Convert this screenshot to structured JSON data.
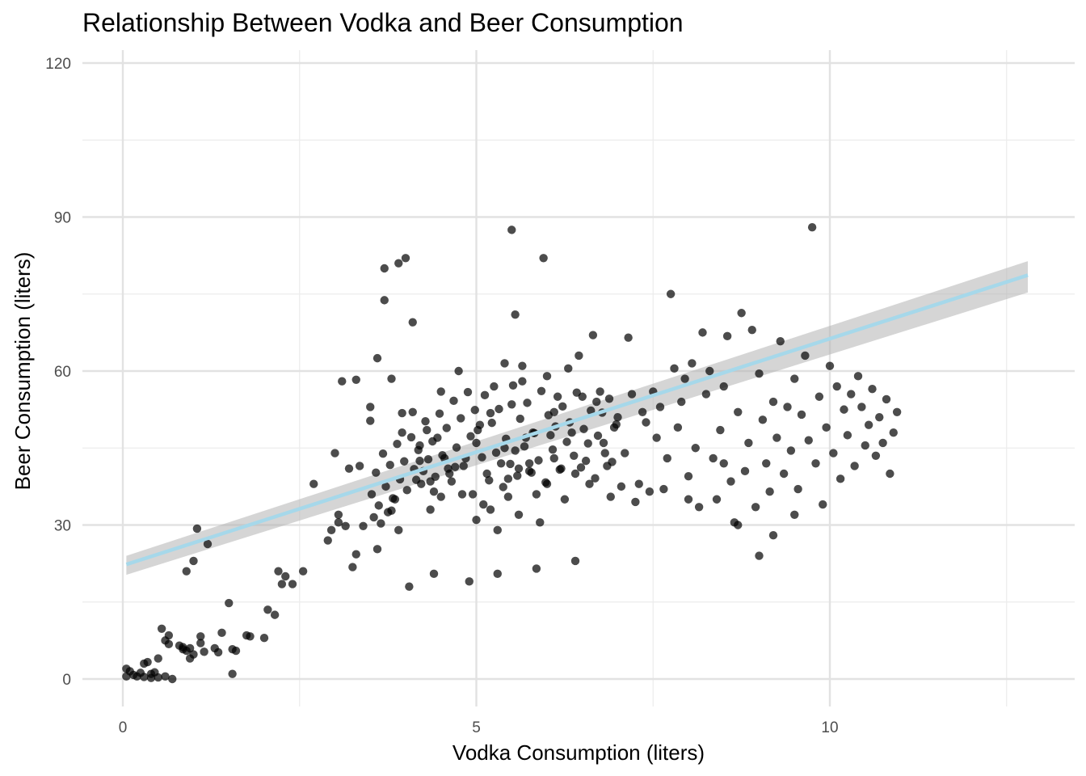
{
  "chart_data": {
    "type": "scatter",
    "title": "Relationship Between Vodka and Beer Consumption",
    "xlabel": "Vodka Consumption (liters)",
    "ylabel": "Beer Consumption (liters)",
    "xlim": [
      -1.1,
      13.2
    ],
    "ylim": [
      -5,
      122
    ],
    "x_ticks": [
      0,
      5,
      10
    ],
    "x_tick_labels": [
      "0",
      "5",
      "10"
    ],
    "y_ticks": [
      0,
      30,
      60,
      90,
      120
    ],
    "y_tick_labels": [
      "0",
      "30",
      "60",
      "90",
      "120"
    ],
    "x_minor_gridlines": [
      2.5,
      7.5,
      12.5
    ],
    "y_minor_gridlines": [
      15,
      45,
      75,
      105
    ],
    "grid": true,
    "legend": "none",
    "point_color": "#000000",
    "point_opacity": 0.7,
    "trend": {
      "type": "linear",
      "x_range": [
        0.05,
        12.8
      ],
      "intercept": 22.1,
      "slope": 4.42,
      "ci_low_start": 20.3,
      "ci_high_start": 24.0,
      "ci_low_end": 75.3,
      "ci_high_end": 81.4,
      "line_color": "#a6d8ea",
      "band_color": "#b3b3b3"
    },
    "points": [
      [
        0.05,
        2.0
      ],
      [
        0.05,
        0.5
      ],
      [
        0.1,
        1.5
      ],
      [
        0.15,
        0.8
      ],
      [
        0.2,
        0.5
      ],
      [
        0.25,
        1.2
      ],
      [
        0.3,
        0.4
      ],
      [
        0.3,
        3.0
      ],
      [
        0.35,
        3.3
      ],
      [
        0.4,
        0.2
      ],
      [
        0.4,
        1.0
      ],
      [
        0.45,
        1.3
      ],
      [
        0.5,
        4.0
      ],
      [
        0.5,
        0.3
      ],
      [
        0.55,
        9.8
      ],
      [
        0.6,
        7.5
      ],
      [
        0.6,
        0.5
      ],
      [
        0.65,
        8.5
      ],
      [
        0.65,
        6.8
      ],
      [
        0.7,
        0.0
      ],
      [
        0.8,
        6.5
      ],
      [
        0.85,
        5.8
      ],
      [
        0.85,
        6.2
      ],
      [
        0.9,
        21.0
      ],
      [
        0.9,
        5.5
      ],
      [
        0.95,
        4.0
      ],
      [
        0.95,
        6.0
      ],
      [
        1.0,
        23.0
      ],
      [
        1.0,
        4.8
      ],
      [
        1.05,
        29.3
      ],
      [
        1.1,
        7.0
      ],
      [
        1.1,
        8.3
      ],
      [
        1.15,
        5.3
      ],
      [
        1.2,
        26.3
      ],
      [
        1.3,
        6.0
      ],
      [
        1.35,
        5.2
      ],
      [
        1.4,
        9.0
      ],
      [
        1.5,
        14.8
      ],
      [
        1.55,
        1.0
      ],
      [
        1.55,
        5.8
      ],
      [
        1.6,
        5.5
      ],
      [
        1.75,
        8.5
      ],
      [
        1.8,
        8.3
      ],
      [
        2.0,
        8.0
      ],
      [
        2.05,
        13.5
      ],
      [
        2.15,
        12.5
      ],
      [
        2.2,
        21.0
      ],
      [
        2.25,
        18.5
      ],
      [
        2.3,
        20.0
      ],
      [
        2.4,
        18.5
      ],
      [
        2.55,
        21.0
      ],
      [
        2.7,
        38.0
      ],
      [
        2.9,
        27.0
      ],
      [
        2.95,
        29.0
      ],
      [
        3.0,
        44.0
      ],
      [
        3.05,
        32.0
      ],
      [
        3.05,
        30.5
      ],
      [
        3.1,
        58.0
      ],
      [
        3.15,
        29.8
      ],
      [
        3.2,
        41.0
      ],
      [
        3.25,
        21.8
      ],
      [
        3.3,
        24.3
      ],
      [
        3.3,
        58.3
      ],
      [
        3.35,
        41.5
      ],
      [
        3.4,
        29.8
      ],
      [
        3.5,
        50.3
      ],
      [
        3.5,
        53.0
      ],
      [
        3.55,
        31.5
      ],
      [
        3.6,
        25.3
      ],
      [
        3.6,
        62.5
      ],
      [
        3.65,
        30.3
      ],
      [
        3.7,
        73.8
      ],
      [
        3.7,
        80.0
      ],
      [
        3.75,
        32.5
      ],
      [
        3.8,
        32.8
      ],
      [
        3.8,
        58.5
      ],
      [
        3.85,
        35.0
      ],
      [
        3.9,
        81.0
      ],
      [
        3.9,
        29.0
      ],
      [
        3.95,
        48.0
      ],
      [
        3.95,
        51.8
      ],
      [
        4.0,
        82.0
      ],
      [
        4.05,
        18.0
      ],
      [
        4.1,
        52.0
      ],
      [
        4.1,
        69.5
      ],
      [
        4.15,
        38.8
      ],
      [
        4.2,
        42.5
      ],
      [
        4.2,
        45.5
      ],
      [
        4.25,
        40.5
      ],
      [
        4.3,
        48.5
      ],
      [
        4.35,
        33.0
      ],
      [
        4.35,
        38.5
      ],
      [
        4.4,
        36.5
      ],
      [
        4.4,
        20.5
      ],
      [
        4.45,
        47.0
      ],
      [
        4.5,
        35.5
      ],
      [
        4.5,
        56.0
      ],
      [
        4.55,
        43.0
      ],
      [
        4.6,
        41.0
      ],
      [
        4.65,
        38.5
      ],
      [
        4.7,
        41.3
      ],
      [
        4.75,
        60.0
      ],
      [
        4.8,
        36.0
      ],
      [
        4.85,
        43.0
      ],
      [
        4.9,
        19.0
      ],
      [
        4.95,
        36.0
      ],
      [
        5.0,
        31.0
      ],
      [
        5.0,
        46.0
      ],
      [
        5.05,
        49.5
      ],
      [
        5.1,
        34.0
      ],
      [
        5.15,
        40.0
      ],
      [
        5.2,
        33.0
      ],
      [
        5.2,
        51.8
      ],
      [
        5.25,
        57.0
      ],
      [
        5.3,
        29.0
      ],
      [
        5.3,
        20.5
      ],
      [
        5.35,
        42.0
      ],
      [
        5.4,
        61.5
      ],
      [
        5.4,
        45.0
      ],
      [
        5.45,
        39.0
      ],
      [
        5.45,
        35.5
      ],
      [
        5.5,
        53.5
      ],
      [
        5.5,
        87.5
      ],
      [
        5.55,
        71.0
      ],
      [
        5.55,
        44.5
      ],
      [
        5.6,
        32.0
      ],
      [
        5.6,
        41.0
      ],
      [
        5.65,
        58.0
      ],
      [
        5.65,
        61.0
      ],
      [
        5.7,
        47.0
      ],
      [
        5.75,
        40.5
      ],
      [
        5.75,
        42.0
      ],
      [
        5.8,
        48.0
      ],
      [
        5.85,
        21.5
      ],
      [
        5.85,
        36.0
      ],
      [
        5.9,
        30.5
      ],
      [
        5.95,
        82.0
      ],
      [
        6.0,
        59.0
      ],
      [
        6.0,
        38.0
      ],
      [
        6.05,
        47.5
      ],
      [
        6.1,
        43.0
      ],
      [
        6.1,
        52.0
      ],
      [
        6.15,
        55.0
      ],
      [
        6.2,
        41.0
      ],
      [
        6.25,
        35.0
      ],
      [
        6.3,
        60.5
      ],
      [
        6.35,
        48.0
      ],
      [
        6.4,
        40.0
      ],
      [
        6.4,
        23.0
      ],
      [
        6.45,
        63.0
      ],
      [
        6.5,
        55.0
      ],
      [
        6.55,
        42.5
      ],
      [
        6.6,
        38.0
      ],
      [
        6.65,
        67.0
      ],
      [
        6.7,
        54.0
      ],
      [
        6.75,
        56.0
      ],
      [
        6.8,
        46.0
      ],
      [
        6.85,
        41.5
      ],
      [
        6.9,
        35.5
      ],
      [
        6.95,
        49.0
      ],
      [
        7.0,
        51.0
      ],
      [
        7.05,
        37.5
      ],
      [
        7.1,
        44.0
      ],
      [
        7.15,
        66.5
      ],
      [
        7.2,
        55.5
      ],
      [
        7.25,
        34.5
      ],
      [
        7.3,
        38.0
      ],
      [
        7.35,
        52.0
      ],
      [
        7.4,
        50.0
      ],
      [
        7.45,
        36.5
      ],
      [
        7.5,
        56.0
      ],
      [
        7.55,
        47.0
      ],
      [
        7.6,
        53.0
      ],
      [
        7.65,
        37.0
      ],
      [
        7.7,
        43.0
      ],
      [
        7.75,
        75.0
      ],
      [
        7.8,
        60.5
      ],
      [
        7.85,
        49.0
      ],
      [
        7.9,
        54.0
      ],
      [
        7.95,
        58.5
      ],
      [
        8.0,
        39.5
      ],
      [
        8.05,
        61.5
      ],
      [
        8.1,
        45.0
      ],
      [
        8.15,
        33.5
      ],
      [
        8.2,
        67.5
      ],
      [
        8.25,
        55.5
      ],
      [
        8.3,
        60.0
      ],
      [
        8.35,
        43.0
      ],
      [
        8.4,
        35.0
      ],
      [
        8.45,
        48.5
      ],
      [
        8.5,
        57.0
      ],
      [
        8.55,
        66.8
      ],
      [
        8.6,
        38.5
      ],
      [
        8.65,
        30.5
      ],
      [
        8.7,
        52.0
      ],
      [
        8.75,
        71.3
      ],
      [
        8.8,
        40.5
      ],
      [
        8.85,
        46.0
      ],
      [
        8.9,
        68.0
      ],
      [
        8.95,
        33.5
      ],
      [
        9.0,
        59.5
      ],
      [
        9.05,
        50.5
      ],
      [
        9.1,
        42.0
      ],
      [
        9.15,
        36.5
      ],
      [
        9.2,
        54.0
      ],
      [
        9.25,
        47.0
      ],
      [
        9.3,
        65.8
      ],
      [
        9.35,
        40.0
      ],
      [
        9.4,
        53.0
      ],
      [
        9.45,
        44.5
      ],
      [
        9.5,
        58.5
      ],
      [
        9.55,
        37.0
      ],
      [
        9.6,
        51.5
      ],
      [
        9.65,
        63.0
      ],
      [
        9.7,
        46.5
      ],
      [
        9.75,
        88.0
      ],
      [
        9.8,
        42.0
      ],
      [
        9.85,
        55.0
      ],
      [
        9.9,
        34.0
      ],
      [
        9.95,
        49.0
      ],
      [
        10.0,
        61.0
      ],
      [
        10.05,
        44.0
      ],
      [
        10.1,
        57.0
      ],
      [
        10.15,
        39.0
      ],
      [
        10.2,
        52.5
      ],
      [
        10.25,
        47.5
      ],
      [
        10.3,
        55.5
      ],
      [
        10.35,
        41.5
      ],
      [
        10.4,
        59.0
      ],
      [
        10.45,
        53.0
      ],
      [
        10.5,
        45.5
      ],
      [
        10.55,
        49.5
      ],
      [
        10.6,
        56.5
      ],
      [
        10.65,
        43.5
      ],
      [
        10.7,
        51.0
      ],
      [
        10.75,
        46.0
      ],
      [
        10.8,
        54.5
      ],
      [
        10.85,
        40.0
      ],
      [
        10.9,
        48.0
      ],
      [
        10.95,
        52.0
      ],
      [
        5.02,
        48.5
      ],
      [
        5.08,
        43.2
      ],
      [
        5.12,
        55.3
      ],
      [
        5.18,
        38.7
      ],
      [
        5.22,
        49.9
      ],
      [
        5.28,
        44.1
      ],
      [
        5.32,
        52.6
      ],
      [
        5.38,
        37.4
      ],
      [
        5.42,
        46.8
      ],
      [
        5.48,
        41.9
      ],
      [
        5.52,
        57.2
      ],
      [
        5.58,
        39.6
      ],
      [
        5.62,
        50.7
      ],
      [
        5.68,
        45.3
      ],
      [
        5.72,
        53.8
      ],
      [
        5.78,
        40.2
      ],
      [
        5.82,
        47.9
      ],
      [
        5.88,
        42.6
      ],
      [
        5.92,
        56.1
      ],
      [
        5.98,
        38.3
      ],
      [
        6.02,
        51.4
      ],
      [
        6.08,
        44.7
      ],
      [
        6.12,
        49.2
      ],
      [
        6.18,
        40.8
      ],
      [
        6.22,
        53.1
      ],
      [
        6.28,
        46.2
      ],
      [
        6.32,
        50.0
      ],
      [
        6.38,
        43.5
      ],
      [
        6.42,
        55.8
      ],
      [
        6.48,
        41.2
      ],
      [
        6.52,
        48.7
      ],
      [
        6.58,
        45.9
      ],
      [
        6.62,
        52.3
      ],
      [
        6.68,
        39.1
      ],
      [
        6.72,
        47.4
      ],
      [
        6.78,
        51.9
      ],
      [
        6.82,
        44.0
      ],
      [
        6.88,
        54.6
      ],
      [
        6.92,
        42.3
      ],
      [
        6.98,
        49.6
      ],
      [
        3.52,
        36.0
      ],
      [
        3.58,
        40.2
      ],
      [
        3.62,
        33.8
      ],
      [
        3.68,
        43.9
      ],
      [
        3.72,
        37.5
      ],
      [
        3.78,
        41.7
      ],
      [
        3.82,
        35.2
      ],
      [
        3.88,
        45.8
      ],
      [
        3.92,
        38.9
      ],
      [
        3.98,
        42.4
      ],
      [
        4.02,
        36.8
      ],
      [
        4.08,
        47.1
      ],
      [
        4.12,
        40.9
      ],
      [
        4.18,
        44.6
      ],
      [
        4.22,
        38.0
      ],
      [
        4.28,
        50.2
      ],
      [
        4.32,
        42.8
      ],
      [
        4.38,
        46.3
      ],
      [
        4.42,
        39.4
      ],
      [
        4.48,
        51.7
      ],
      [
        4.52,
        43.6
      ],
      [
        4.58,
        48.9
      ],
      [
        4.62,
        40.0
      ],
      [
        4.68,
        54.2
      ],
      [
        4.72,
        45.1
      ],
      [
        4.78,
        50.8
      ],
      [
        4.82,
        41.5
      ],
      [
        4.88,
        55.9
      ],
      [
        4.92,
        47.3
      ],
      [
        4.98,
        52.4
      ],
      [
        8.0,
        35.0
      ],
      [
        8.5,
        42.0
      ],
      [
        8.7,
        30.0
      ],
      [
        9.0,
        24.0
      ],
      [
        9.2,
        28.0
      ],
      [
        9.5,
        32.0
      ]
    ]
  }
}
